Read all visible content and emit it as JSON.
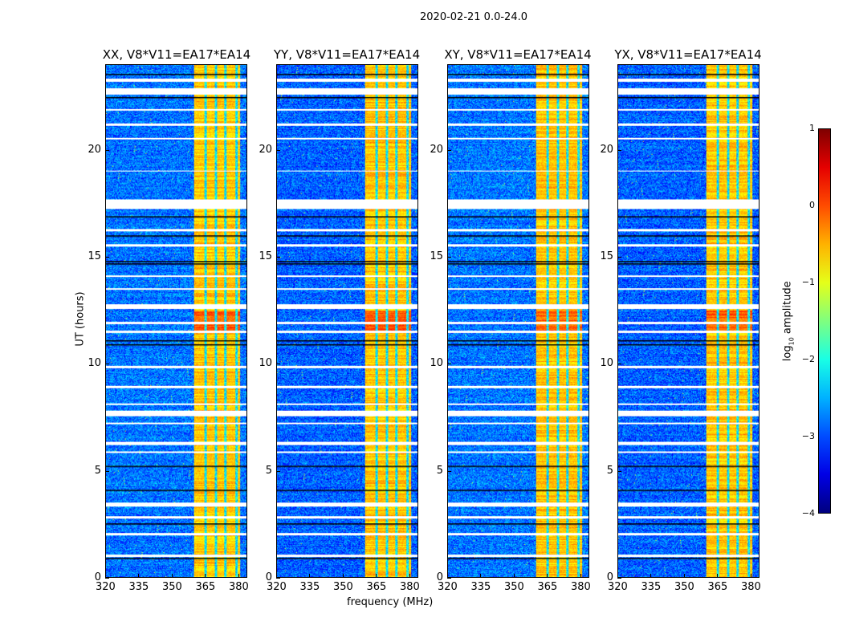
{
  "suptitle": "2020-02-21 0.0-24.0",
  "xlabel": "frequency (MHz)",
  "ylabel": "UT (hours)",
  "colorbar": {
    "label_prefix": "log",
    "label_sub": "10",
    "label_suffix": " amplitude",
    "ticks": [
      "1",
      "0",
      "−1",
      "−2",
      "−3",
      "−4"
    ],
    "tick_values": [
      1,
      0,
      -1,
      -2,
      -3,
      -4
    ],
    "range": [
      -4,
      1
    ],
    "colormap": "jet"
  },
  "chart_data": {
    "type": "heatmap",
    "xlim": [
      320,
      384
    ],
    "ylim": [
      0,
      24
    ],
    "xticks": [
      320,
      335,
      350,
      365,
      380
    ],
    "yticks": [
      0,
      5,
      10,
      15,
      20
    ],
    "xtick_labels": [
      "320",
      "335",
      "350",
      "365",
      "380"
    ],
    "ytick_labels": [
      "0",
      "5",
      "10",
      "15",
      "20"
    ],
    "background_level": -3.0,
    "bright_band_mhz": [
      360,
      381
    ],
    "band_level": -0.6,
    "band_gaps_mhz": [
      365.5,
      370,
      374.5,
      379.5
    ],
    "flagged_hours": [
      [
        23.2,
        23.35
      ],
      [
        22.6,
        22.9
      ],
      [
        21.85,
        21.95
      ],
      [
        21.15,
        21.25
      ],
      [
        20.5,
        20.6
      ],
      [
        19.0,
        19.05
      ],
      [
        17.25,
        17.7
      ],
      [
        16.2,
        16.3
      ],
      [
        15.5,
        15.6
      ],
      [
        14.05,
        14.15
      ],
      [
        13.45,
        13.55
      ],
      [
        12.55,
        12.8
      ],
      [
        11.85,
        11.95
      ],
      [
        11.45,
        11.55
      ],
      [
        9.8,
        9.9
      ],
      [
        8.85,
        8.95
      ],
      [
        8.05,
        8.15
      ],
      [
        7.55,
        7.8
      ],
      [
        7.15,
        7.25
      ],
      [
        6.2,
        6.35
      ],
      [
        5.8,
        5.9
      ],
      [
        3.3,
        3.5
      ],
      [
        2.75,
        2.85
      ],
      [
        1.95,
        2.05
      ],
      [
        0.95,
        1.05
      ]
    ],
    "black_lines_hours": [
      23.6,
      22.5,
      16.9,
      16.0,
      14.8,
      14.7,
      11.1,
      10.9,
      5.2,
      4.1,
      2.5,
      0.9
    ],
    "panels": [
      {
        "title": "XX, V8*V11=EA17*EA14"
      },
      {
        "title": "YY, V8*V11=EA17*EA14"
      },
      {
        "title": "XY, V8*V11=EA17*EA14"
      },
      {
        "title": "YX, V8*V11=EA17*EA14"
      }
    ]
  }
}
